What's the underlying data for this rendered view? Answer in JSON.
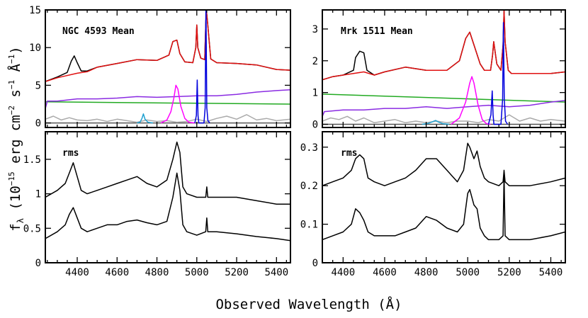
{
  "figure": {
    "xlabel": "Observed Wavelength (Å)",
    "ylabel_main": "f",
    "ylabel_sub": "λ",
    "ylabel_unit": "(10",
    "ylabel_exp": "−15",
    "ylabel_rest": " erg cm",
    "ylabel_exp2": "−2",
    "ylabel_rest2": " s",
    "ylabel_exp3": "−1",
    "ylabel_rest3": " Å",
    "ylabel_exp4": "−1",
    "ylabel_end": ")"
  },
  "colors": {
    "total": "#000000",
    "model": "#e01010",
    "host": "#8a2be2",
    "powerlaw": "#22aa22",
    "hbeta": "#ff00ff",
    "oiii": "#0000dd",
    "heii": "#1ea0d0",
    "feii": "#aaaaaa",
    "zero": "#555555"
  },
  "chart_data": [
    {
      "type": "line",
      "panel": "NGC 4593 Mean",
      "title": "NGC 4593 Mean",
      "xlim": [
        4240,
        5470
      ],
      "ylim": [
        -0.6,
        15
      ],
      "xticks": [
        4400,
        4600,
        4800,
        5000,
        5200,
        5400
      ],
      "yticks": [
        0,
        5,
        10,
        15
      ],
      "series": [
        {
          "role": "total",
          "x": [
            4240,
            4300,
            4350,
            4370,
            4385,
            4400,
            4420,
            4450,
            4500,
            4600,
            4700,
            4800,
            4860,
            4880,
            4900,
            4915,
            4940,
            4980,
            4995,
            5000,
            5005,
            5020,
            5040,
            5045,
            5048,
            5055,
            5070,
            5100,
            5200,
            5300,
            5400,
            5470
          ],
          "y": [
            5.5,
            6.1,
            6.7,
            8.2,
            8.9,
            8.0,
            6.9,
            6.9,
            7.4,
            7.9,
            8.4,
            8.3,
            9.0,
            10.8,
            11.0,
            9.2,
            8.1,
            8.0,
            10.0,
            13.0,
            10.0,
            8.6,
            8.4,
            13.0,
            15.0,
            13.0,
            8.5,
            8.0,
            7.9,
            7.7,
            7.1,
            7.0
          ]
        },
        {
          "role": "model",
          "x": [
            4240,
            4300,
            4400,
            4450,
            4500,
            4600,
            4700,
            4800,
            4860,
            4880,
            4900,
            4915,
            4940,
            4980,
            4995,
            5000,
            5005,
            5020,
            5040,
            5045,
            5048,
            5055,
            5070,
            5100,
            5200,
            5300,
            5400,
            5470
          ],
          "y": [
            5.5,
            6.0,
            6.6,
            6.8,
            7.4,
            7.9,
            8.4,
            8.3,
            9.0,
            10.8,
            11.0,
            9.2,
            8.1,
            8.0,
            10.0,
            13.0,
            10.0,
            8.6,
            8.4,
            13.0,
            15.0,
            13.0,
            8.5,
            8.0,
            7.9,
            7.7,
            7.1,
            7.0
          ]
        },
        {
          "role": "host",
          "x": [
            4240,
            4250,
            4300,
            4400,
            4500,
            4600,
            4700,
            4800,
            4900,
            5000,
            5100,
            5200,
            5300,
            5400,
            5470
          ],
          "y": [
            1.9,
            2.9,
            2.9,
            3.2,
            3.2,
            3.3,
            3.5,
            3.4,
            3.5,
            3.6,
            3.6,
            3.8,
            4.1,
            4.3,
            4.4
          ]
        },
        {
          "role": "powerlaw",
          "x": [
            4240,
            5470
          ],
          "y": [
            2.8,
            2.5
          ]
        },
        {
          "role": "feii",
          "x": [
            4240,
            4280,
            4320,
            4360,
            4400,
            4450,
            4500,
            4550,
            4600,
            4650,
            4700,
            4750,
            4800,
            4850,
            4900,
            4950,
            5000,
            5050,
            5100,
            5150,
            5200,
            5250,
            5300,
            5350,
            5400,
            5470
          ],
          "y": [
            0.5,
            0.9,
            0.4,
            0.7,
            0.4,
            0.3,
            0.5,
            0.2,
            0.5,
            0.3,
            0.1,
            0.4,
            0.2,
            0.3,
            0.1,
            0.2,
            0.5,
            0.2,
            0.6,
            0.9,
            0.5,
            1.1,
            0.4,
            0.6,
            0.3,
            0.5
          ]
        },
        {
          "role": "heii",
          "x": [
            4700,
            4715,
            4725,
            4732,
            4740,
            4755,
            4780
          ],
          "y": [
            0,
            0.1,
            0.6,
            1.2,
            0.5,
            0.1,
            0
          ]
        },
        {
          "role": "hbeta",
          "x": [
            4820,
            4850,
            4870,
            4885,
            4895,
            4905,
            4920,
            4940,
            4960,
            4990
          ],
          "y": [
            0,
            0.4,
            1.5,
            3.3,
            5.0,
            4.5,
            2.2,
            0.6,
            0.1,
            0
          ]
        },
        {
          "role": "oiii",
          "x": [
            4990,
            4998,
            5002,
            5006,
            5010,
            5020,
            5036,
            5042,
            5046,
            5050,
            5056,
            5065
          ],
          "y": [
            0,
            1.0,
            5.7,
            1.0,
            0,
            0,
            0,
            2.0,
            16.0,
            2.0,
            0.3,
            0
          ]
        },
        {
          "role": "zero",
          "x": [
            4240,
            5470
          ],
          "y": [
            0,
            0
          ]
        }
      ]
    },
    {
      "type": "line",
      "panel": "NGC 4593 rms",
      "title": "rms",
      "xlim": [
        4240,
        5470
      ],
      "ylim": [
        0,
        1.9
      ],
      "xticks": [
        4400,
        4600,
        4800,
        5000,
        5200,
        5400
      ],
      "yticks": [
        0,
        0.5,
        1,
        1.5
      ],
      "series": [
        {
          "role": "rms-upper",
          "x": [
            4240,
            4300,
            4340,
            4360,
            4380,
            4400,
            4420,
            4450,
            4500,
            4550,
            4600,
            4650,
            4700,
            4750,
            4800,
            4850,
            4880,
            4900,
            4915,
            4930,
            4950,
            5000,
            5045,
            5050,
            5055,
            5100,
            5200,
            5300,
            5400,
            5470
          ],
          "y": [
            0.95,
            1.05,
            1.15,
            1.3,
            1.45,
            1.25,
            1.05,
            1.0,
            1.05,
            1.1,
            1.15,
            1.2,
            1.25,
            1.15,
            1.1,
            1.2,
            1.5,
            1.75,
            1.6,
            1.1,
            1.0,
            0.95,
            0.95,
            1.1,
            0.95,
            0.95,
            0.95,
            0.9,
            0.85,
            0.85
          ]
        },
        {
          "role": "rms-lower",
          "x": [
            4240,
            4300,
            4340,
            4360,
            4380,
            4400,
            4420,
            4450,
            4500,
            4550,
            4600,
            4650,
            4700,
            4750,
            4800,
            4850,
            4880,
            4900,
            4915,
            4930,
            4950,
            5000,
            5045,
            5050,
            5055,
            5100,
            5200,
            5300,
            5400,
            5470
          ],
          "y": [
            0.35,
            0.45,
            0.55,
            0.7,
            0.8,
            0.65,
            0.5,
            0.45,
            0.5,
            0.55,
            0.55,
            0.6,
            0.62,
            0.58,
            0.55,
            0.6,
            0.95,
            1.3,
            1.05,
            0.55,
            0.45,
            0.4,
            0.45,
            0.65,
            0.45,
            0.45,
            0.42,
            0.38,
            0.35,
            0.32
          ]
        }
      ]
    },
    {
      "type": "line",
      "panel": "Mrk 1511 Mean",
      "title": "Mrk 1511 Mean",
      "xlim": [
        4300,
        5470
      ],
      "ylim": [
        -0.1,
        3.6
      ],
      "xticks": [
        4400,
        4600,
        4800,
        5000,
        5200,
        5400
      ],
      "yticks": [
        0,
        1,
        2,
        3
      ],
      "series": [
        {
          "role": "total",
          "x": [
            4300,
            4350,
            4400,
            4450,
            4460,
            4480,
            4500,
            4515,
            4550,
            4600,
            4700,
            4800,
            4900,
            4960,
            4990,
            5010,
            5030,
            5060,
            5080,
            5110,
            5120,
            5125,
            5140,
            5160,
            5170,
            5175,
            5180,
            5195,
            5210,
            5300,
            5400,
            5470
          ],
          "y": [
            1.4,
            1.5,
            1.55,
            1.7,
            2.1,
            2.3,
            2.25,
            1.7,
            1.55,
            1.65,
            1.8,
            1.7,
            1.7,
            2.0,
            2.7,
            2.9,
            2.5,
            1.9,
            1.7,
            1.7,
            2.2,
            2.6,
            1.9,
            1.7,
            2.5,
            3.6,
            2.6,
            1.7,
            1.6,
            1.6,
            1.6,
            1.65
          ]
        },
        {
          "role": "model",
          "x": [
            4300,
            4350,
            4400,
            4450,
            4500,
            4550,
            4600,
            4700,
            4800,
            4900,
            4960,
            4990,
            5010,
            5030,
            5060,
            5080,
            5110,
            5120,
            5125,
            5140,
            5160,
            5170,
            5175,
            5180,
            5195,
            5210,
            5300,
            5400,
            5470
          ],
          "y": [
            1.4,
            1.5,
            1.55,
            1.6,
            1.65,
            1.55,
            1.65,
            1.8,
            1.7,
            1.7,
            2.0,
            2.7,
            2.9,
            2.5,
            1.9,
            1.7,
            1.7,
            2.2,
            2.6,
            1.9,
            1.7,
            2.5,
            3.6,
            2.6,
            1.7,
            1.6,
            1.6,
            1.6,
            1.65
          ]
        },
        {
          "role": "host",
          "x": [
            4300,
            4310,
            4400,
            4500,
            4600,
            4700,
            4800,
            4900,
            5000,
            5100,
            5200,
            5300,
            5400,
            5470
          ],
          "y": [
            0.25,
            0.4,
            0.45,
            0.45,
            0.5,
            0.5,
            0.55,
            0.5,
            0.55,
            0.6,
            0.55,
            0.6,
            0.7,
            0.75
          ]
        },
        {
          "role": "powerlaw",
          "x": [
            4300,
            5470
          ],
          "y": [
            0.95,
            0.7
          ]
        },
        {
          "role": "feii",
          "x": [
            4300,
            4340,
            4380,
            4420,
            4460,
            4500,
            4550,
            4600,
            4650,
            4700,
            4750,
            4800,
            4850,
            4900,
            4950,
            5000,
            5050,
            5100,
            5150,
            5200,
            5250,
            5300,
            5350,
            5400,
            5470
          ],
          "y": [
            0.1,
            0.2,
            0.15,
            0.25,
            0.1,
            0.2,
            0.05,
            0.1,
            0.15,
            0.05,
            0.1,
            0.05,
            0.1,
            0.05,
            0.1,
            0.1,
            0.05,
            0.15,
            0.1,
            0.3,
            0.1,
            0.2,
            0.1,
            0.15,
            0.1
          ]
        },
        {
          "role": "heii",
          "x": [
            4780,
            4810,
            4830,
            4845,
            4860,
            4880,
            4910
          ],
          "y": [
            0,
            0.03,
            0.08,
            0.12,
            0.07,
            0.02,
            0
          ]
        },
        {
          "role": "hbeta",
          "x": [
            4920,
            4960,
            4990,
            5010,
            5020,
            5030,
            5050,
            5070,
            5090,
            5110
          ],
          "y": [
            0,
            0.2,
            0.7,
            1.3,
            1.5,
            1.3,
            0.6,
            0.15,
            0.02,
            0
          ]
        },
        {
          "role": "oiii",
          "x": [
            5100,
            5112,
            5118,
            5122,
            5126,
            5135,
            5160,
            5168,
            5172,
            5176,
            5182,
            5192
          ],
          "y": [
            0,
            0.3,
            1.05,
            0.3,
            0,
            0,
            0,
            0.8,
            3.2,
            0.8,
            0.1,
            0
          ]
        },
        {
          "role": "zero",
          "x": [
            4300,
            5470
          ],
          "y": [
            0,
            0
          ]
        }
      ]
    },
    {
      "type": "line",
      "panel": "Mrk 1511 rms",
      "title": "rms",
      "xlim": [
        4300,
        5470
      ],
      "ylim": [
        0,
        0.34
      ],
      "xticks": [
        4400,
        4600,
        4800,
        5000,
        5200,
        5400
      ],
      "yticks": [
        0,
        0.1,
        0.2,
        0.3
      ],
      "series": [
        {
          "role": "rms-upper",
          "x": [
            4300,
            4350,
            4400,
            4440,
            4460,
            4480,
            4500,
            4520,
            4550,
            4600,
            4650,
            4700,
            4750,
            4800,
            4850,
            4900,
            4950,
            4980,
            5000,
            5010,
            5030,
            5045,
            5060,
            5080,
            5100,
            5150,
            5170,
            5175,
            5180,
            5200,
            5300,
            5400,
            5470
          ],
          "y": [
            0.2,
            0.21,
            0.22,
            0.24,
            0.27,
            0.28,
            0.27,
            0.22,
            0.21,
            0.2,
            0.21,
            0.22,
            0.24,
            0.27,
            0.27,
            0.24,
            0.21,
            0.24,
            0.31,
            0.3,
            0.27,
            0.29,
            0.25,
            0.22,
            0.21,
            0.2,
            0.21,
            0.24,
            0.21,
            0.2,
            0.2,
            0.21,
            0.22
          ]
        },
        {
          "role": "rms-lower",
          "x": [
            4300,
            4350,
            4400,
            4440,
            4460,
            4480,
            4500,
            4520,
            4550,
            4600,
            4650,
            4700,
            4750,
            4800,
            4850,
            4900,
            4950,
            4980,
            5000,
            5010,
            5030,
            5045,
            5060,
            5080,
            5100,
            5150,
            5170,
            5175,
            5180,
            5200,
            5300,
            5400,
            5470
          ],
          "y": [
            0.06,
            0.07,
            0.08,
            0.1,
            0.14,
            0.13,
            0.11,
            0.08,
            0.07,
            0.07,
            0.07,
            0.08,
            0.09,
            0.12,
            0.11,
            0.09,
            0.08,
            0.1,
            0.18,
            0.19,
            0.15,
            0.14,
            0.09,
            0.07,
            0.06,
            0.06,
            0.07,
            0.23,
            0.07,
            0.06,
            0.06,
            0.07,
            0.08
          ]
        }
      ]
    }
  ]
}
